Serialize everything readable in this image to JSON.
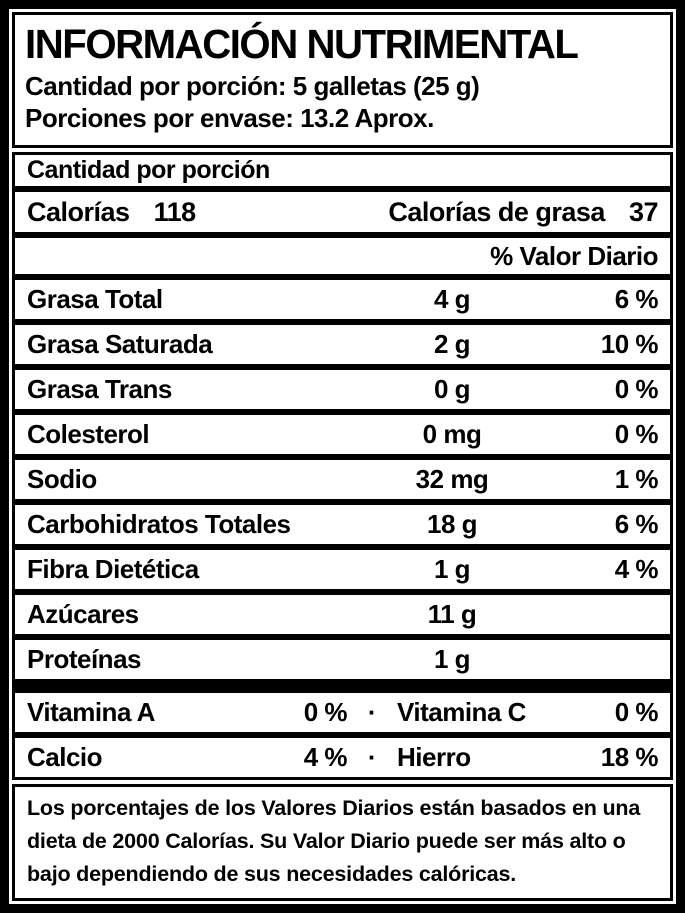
{
  "label": {
    "title": "INFORMACIÓN NUTRIMENTAL",
    "serving": {
      "line1": "Cantidad por porción: 5 galletas (25 g)",
      "line2": "Porciones por envase: 13.2 Aprox."
    },
    "section_header": "Cantidad por porción",
    "calories": {
      "label": "Calorías",
      "value": "118",
      "fat_label": "Calorías de grasa",
      "fat_value": "37"
    },
    "daily_value_header": "% Valor Diario",
    "nutrients": [
      {
        "name": "Grasa Total",
        "amount": "4 g",
        "dv": "6 %"
      },
      {
        "name": "Grasa Saturada",
        "amount": "2 g",
        "dv": "10 %"
      },
      {
        "name": "Grasa Trans",
        "amount": "0 g",
        "dv": "0 %"
      },
      {
        "name": "Colesterol",
        "amount": "0 mg",
        "dv": "0 %"
      },
      {
        "name": "Sodio",
        "amount": "32 mg",
        "dv": "1 %"
      },
      {
        "name": "Carbohidratos Totales",
        "amount": "18 g",
        "dv": "6 %"
      },
      {
        "name": "Fibra Dietética",
        "amount": "1 g",
        "dv": "4 %"
      },
      {
        "name": "Azúcares",
        "amount": "11 g",
        "dv": ""
      },
      {
        "name": "Proteínas",
        "amount": "1 g",
        "dv": ""
      }
    ],
    "vitamins": [
      {
        "name1": "Vitamina A",
        "pct1": "0 %",
        "sep": "·",
        "name2": "Vitamina C",
        "pct2": "0 %"
      },
      {
        "name1": "Calcio",
        "pct1": "4 %",
        "sep": "·",
        "name2": "Hierro",
        "pct2": "18 %"
      }
    ],
    "footnote": "Los porcentajes de los Valores Diarios están basados en una dieta de 2000 Calorías. Su Valor Diario puede ser más alto o bajo dependiendo de sus necesidades calóricas.",
    "colors": {
      "frame": "#000000",
      "background": "#ffffff",
      "text": "#000000"
    }
  }
}
